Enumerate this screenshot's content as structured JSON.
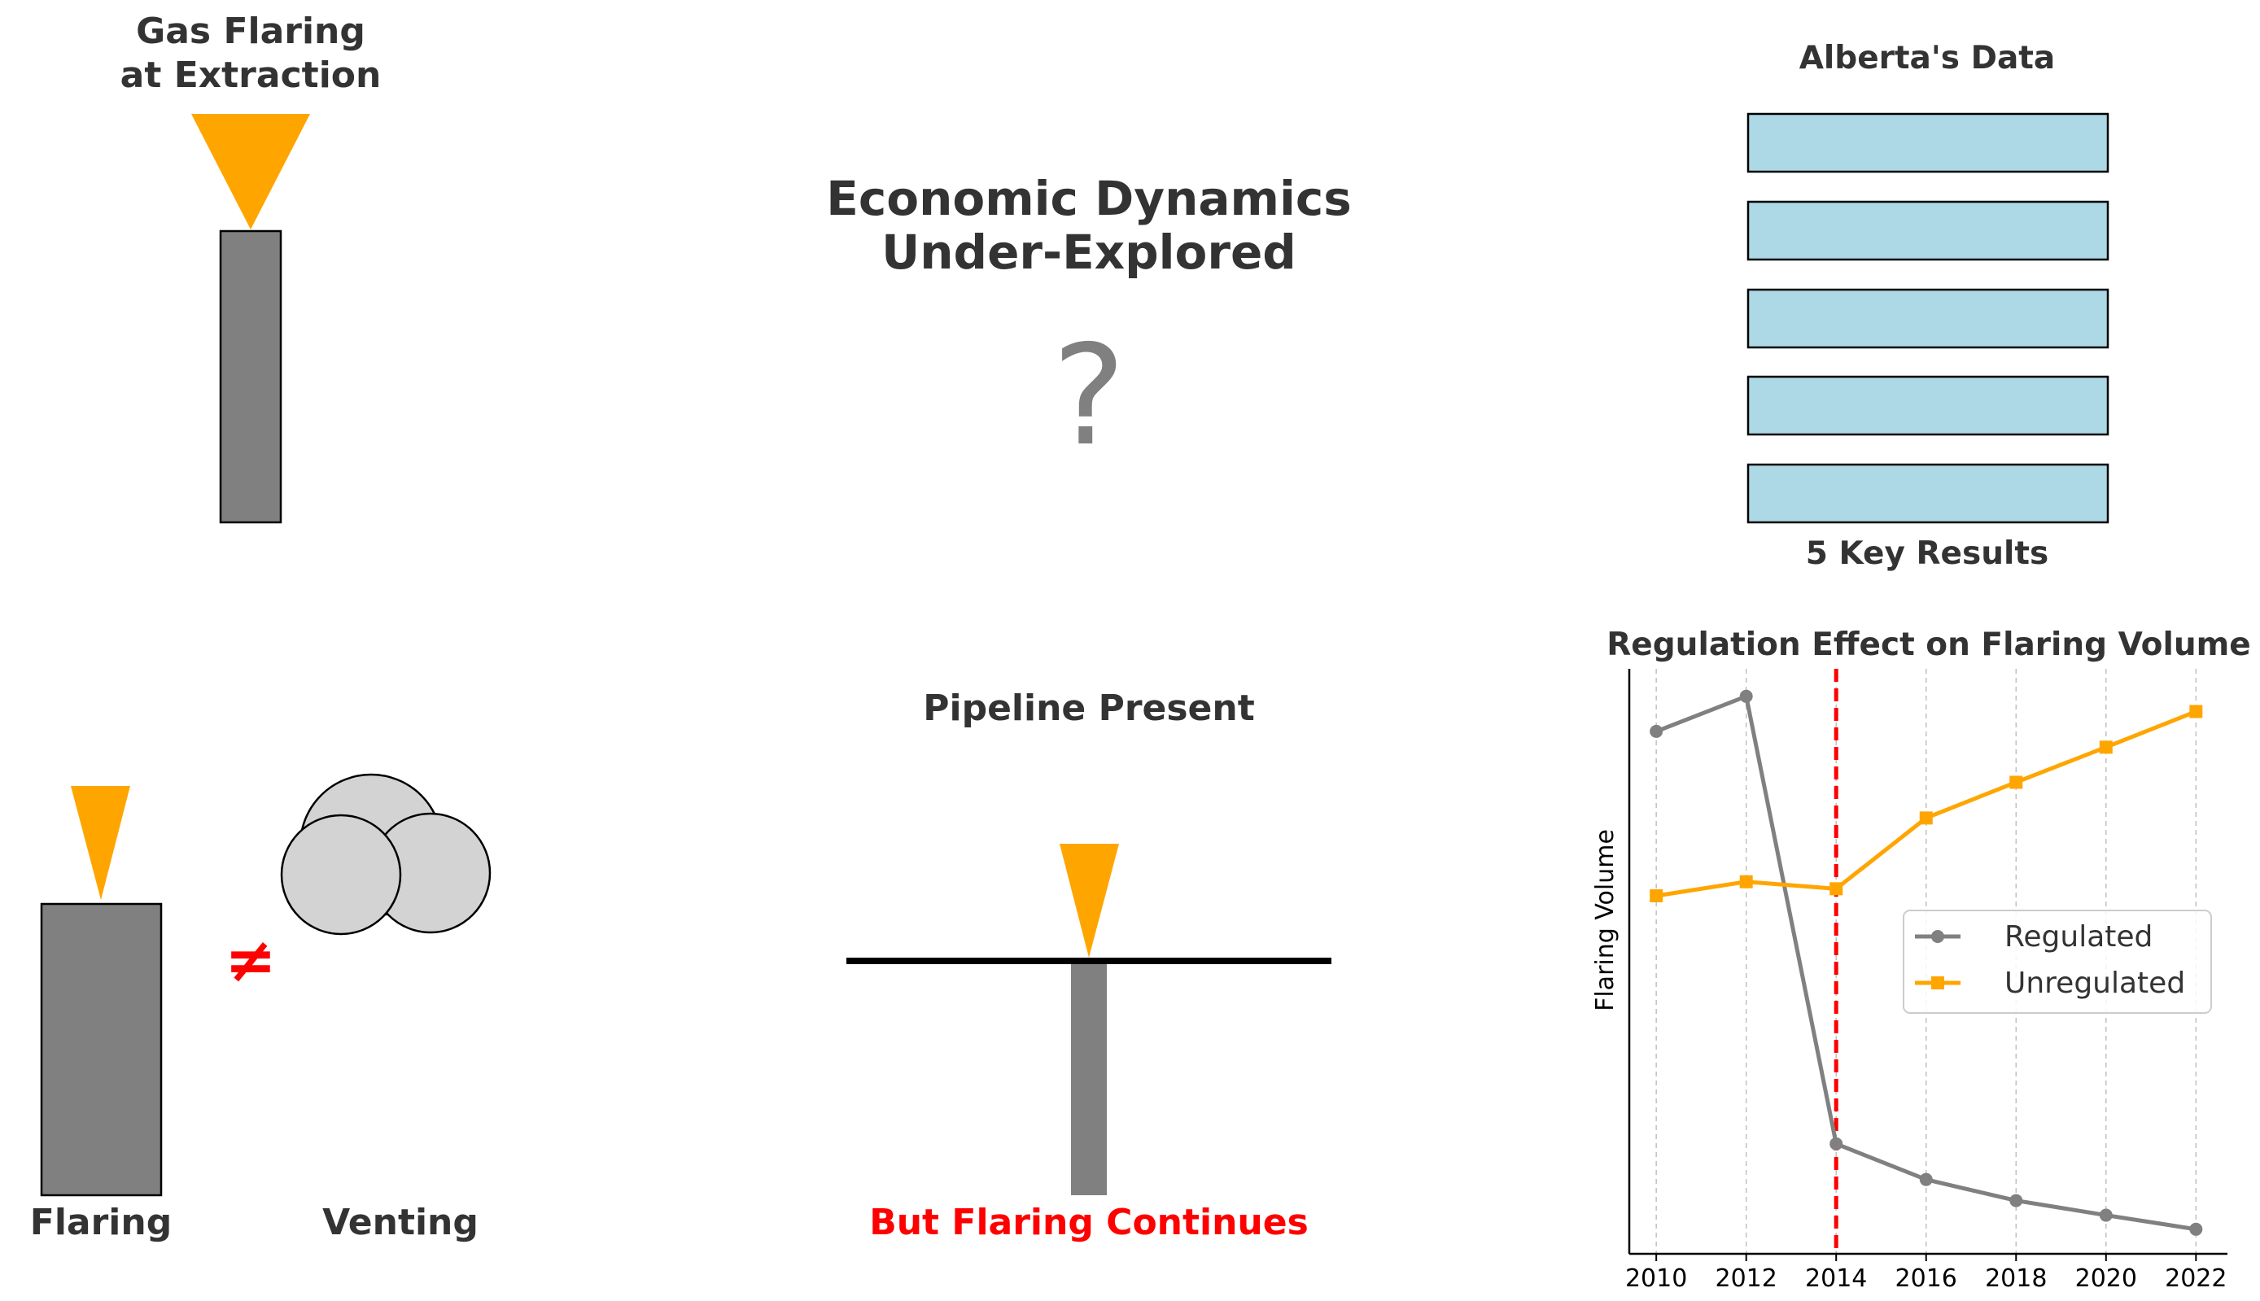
{
  "panels": {
    "flaring_extraction": {
      "title_line1": "Gas Flaring",
      "title_line2": "at Extraction"
    },
    "economic": {
      "title_line1": "Economic Dynamics",
      "title_line2": "Under-Explored",
      "symbol": "?"
    },
    "alberta": {
      "title": "Alberta's Data",
      "footer": "5 Key Results",
      "result_count": 5
    },
    "flaring_vs_venting": {
      "flaring_label": "Flaring",
      "venting_label": "Venting",
      "not_equal_symbol": "≠"
    },
    "pipeline": {
      "title": "Pipeline Present",
      "caption": "But Flaring Continues"
    }
  },
  "colors": {
    "text": "#333333",
    "flame": "#FFA500",
    "stack": "#808080",
    "cloud": "#D3D3D3",
    "result_box": "#ADD8E6",
    "alert": "#FF0000"
  },
  "chart_data": {
    "type": "line",
    "title": "Regulation Effect on Flaring Volume",
    "xlabel": "",
    "ylabel": "Flaring Volume",
    "x": [
      2010,
      2012,
      2014,
      2016,
      2018,
      2020,
      2022
    ],
    "x_ticks": [
      "2010",
      "2012",
      "2014",
      "2016",
      "2018",
      "2020",
      "2022"
    ],
    "xlim": [
      2009.4,
      2022.7
    ],
    "ylim": [
      0,
      100
    ],
    "y_ticks_shown": false,
    "vertical_grid": true,
    "reference_line": {
      "x": 2014,
      "style": "dashed",
      "color": "#FF0000"
    },
    "legend_position": "center-right",
    "series": [
      {
        "name": "Regulated",
        "color": "#808080",
        "marker": "circle",
        "values": [
          89.3,
          95.3,
          18.8,
          12.7,
          9.1,
          6.6,
          4.2
        ]
      },
      {
        "name": "Unregulated",
        "color": "#FFA500",
        "marker": "square",
        "values": [
          61.2,
          63.6,
          62.4,
          74.5,
          80.6,
          86.6,
          92.7
        ]
      }
    ]
  }
}
